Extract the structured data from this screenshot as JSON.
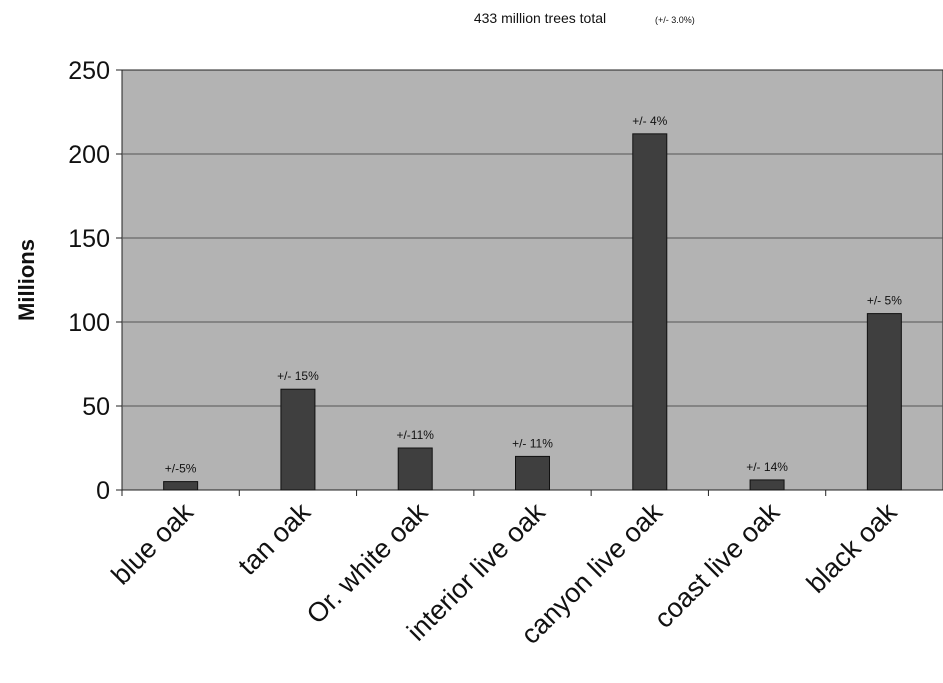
{
  "chart_data": {
    "type": "bar",
    "title": "433 million trees total",
    "subtitle": "(+/- 3.0%)",
    "ylabel": "Millions",
    "xlabel": "",
    "ylim": [
      0,
      250
    ],
    "yticks": [
      0,
      50,
      100,
      150,
      200,
      250
    ],
    "grid": true,
    "legend": "none",
    "categories": [
      "blue oak",
      "tan oak",
      "Or. white oak",
      "interior live oak",
      "canyon live oak",
      "coast live oak",
      "black oak"
    ],
    "values": [
      5,
      60,
      25,
      20,
      212,
      6,
      105
    ],
    "data_labels": [
      "+/-5%",
      "+/- 15%",
      "+/-11%",
      "+/- 11%",
      "+/- 4%",
      "+/- 14%",
      "+/- 5%"
    ],
    "colors": {
      "plot_bg": "#b3b3b3",
      "bar": "#3f3f3f",
      "grid": "#555555"
    }
  }
}
